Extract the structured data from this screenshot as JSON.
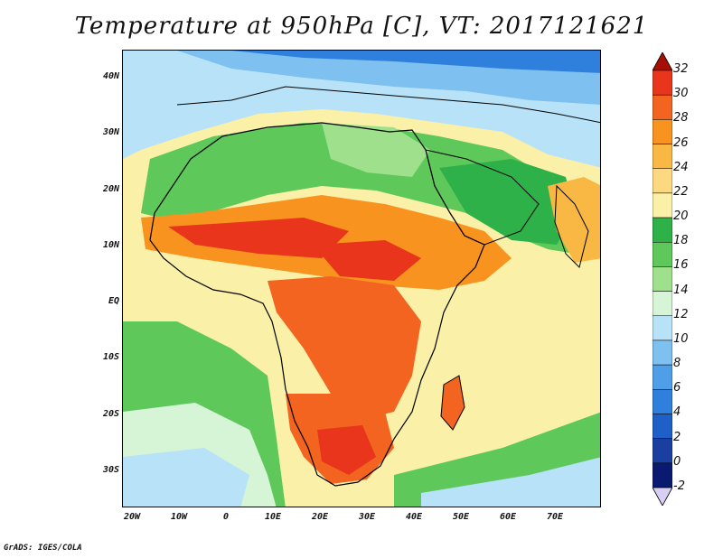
{
  "title": "Temperature at 950hPa [C], VT: 2017121621",
  "footer": "GrADS: IGES/COLA",
  "map": {
    "lon_range": [
      -22,
      80
    ],
    "lat_range": [
      -37,
      45
    ],
    "lat_ticks": [
      {
        "value": 40,
        "label": "40N"
      },
      {
        "value": 30,
        "label": "30N"
      },
      {
        "value": 20,
        "label": "20N"
      },
      {
        "value": 10,
        "label": "10N"
      },
      {
        "value": 0,
        "label": "EQ"
      },
      {
        "value": -10,
        "label": "10S"
      },
      {
        "value": -20,
        "label": "20S"
      },
      {
        "value": -30,
        "label": "30S"
      }
    ],
    "lon_ticks": [
      {
        "value": -20,
        "label": "20W"
      },
      {
        "value": -10,
        "label": "10W"
      },
      {
        "value": 0,
        "label": "0"
      },
      {
        "value": 10,
        "label": "10E"
      },
      {
        "value": 20,
        "label": "20E"
      },
      {
        "value": 30,
        "label": "30E"
      },
      {
        "value": 40,
        "label": "40E"
      },
      {
        "value": 50,
        "label": "50E"
      },
      {
        "value": 60,
        "label": "60E"
      },
      {
        "value": 70,
        "label": "70E"
      }
    ]
  },
  "colorbar": {
    "levels": [
      "32",
      "30",
      "28",
      "26",
      "24",
      "22",
      "20",
      "18",
      "16",
      "14",
      "12",
      "10",
      "8",
      "6",
      "4",
      "2",
      "0",
      "-2"
    ],
    "colors": [
      "#a50f05",
      "#e8351c",
      "#f26420",
      "#f7931e",
      "#f9b843",
      "#fcd880",
      "#fbf0a8",
      "#2fb14a",
      "#5ec95a",
      "#9fe08c",
      "#d6f5d6",
      "#b8e2f8",
      "#7ec0f0",
      "#4f9fe8",
      "#2f7fdd",
      "#1f5fc8",
      "#1a3fa0",
      "#0a1a70",
      "#d8d0f4"
    ]
  }
}
